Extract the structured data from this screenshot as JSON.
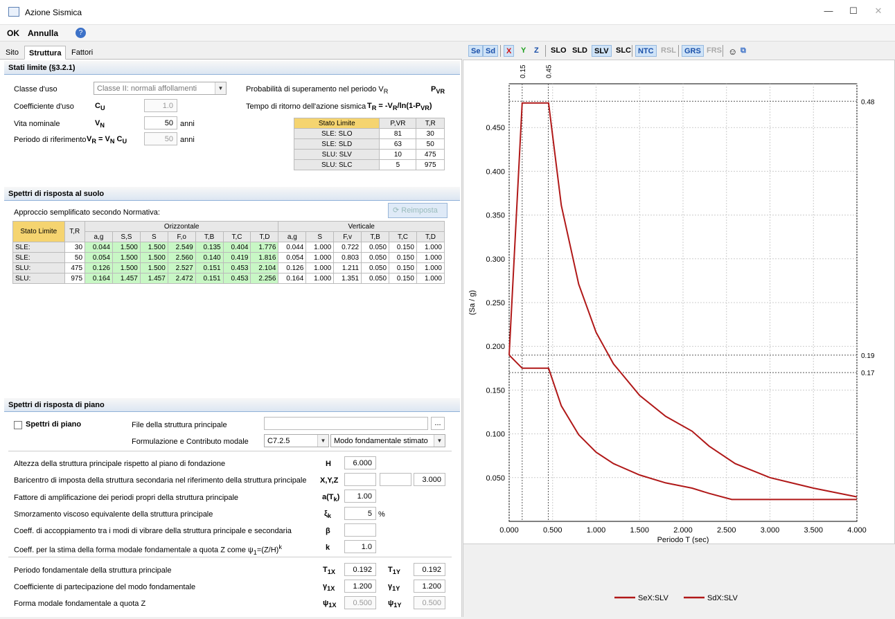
{
  "window": {
    "title": "Azione Sismica",
    "minimize": "—",
    "maximize": "☐",
    "close": "✕"
  },
  "menu": {
    "ok": "OK",
    "annulla": "Annulla",
    "help": "?"
  },
  "tabs": [
    "Sito",
    "Struttura",
    "Fattori"
  ],
  "stati": {
    "header": "Stati limite (§3.2.1)",
    "classe_label": "Classe d'uso",
    "classe_value": "Classe II: normali affollamenti",
    "coeff_label": "Coefficiente d'uso",
    "coeff_sym": "C",
    "coeff_sub": "U",
    "coeff_value": "1.0",
    "vita_label": "Vita nominale",
    "vita_sym": "V",
    "vita_sub": "N",
    "vita_value": "50",
    "vita_unit": "anni",
    "periodo_label": "Periodo di riferimento",
    "periodo_formula": "V",
    "periodo_value": "50",
    "periodo_unit": "anni",
    "prob_label": "Probabilità di superamento nel periodo V",
    "prob_sub": "R",
    "prob_sym": "P",
    "prob_sym_sub": "VR",
    "tempo_label": "Tempo di ritorno dell'azione sismica",
    "limit_table": {
      "headers": [
        "Stato Limite",
        "P,VR",
        "T,R"
      ],
      "rows": [
        [
          "SLE: SLO",
          "81",
          "30"
        ],
        [
          "SLE: SLD",
          "63",
          "50"
        ],
        [
          "SLU: SLV",
          "10",
          "475"
        ],
        [
          "SLU: SLC",
          "5",
          "975"
        ]
      ]
    }
  },
  "spettri": {
    "header": "Spettri di risposta al suolo",
    "approccio": "Approccio semplificato secondo Normativa:",
    "reimposta": "Reimposta",
    "stato": "Stato Limite",
    "tr": "T,R",
    "orizz": "Orizzontale",
    "vert": "Verticale",
    "cols_h": [
      "a,g",
      "S,S",
      "S",
      "F,o",
      "T,B",
      "T,C",
      "T,D"
    ],
    "cols_v": [
      "a,g",
      "S",
      "F,v",
      "T,B",
      "T,C",
      "T,D"
    ],
    "rows": [
      {
        "s": "SLE:",
        "tr": "30",
        "h": [
          "0.044",
          "1.500",
          "1.500",
          "2.549",
          "0.135",
          "0.404",
          "1.776"
        ],
        "v": [
          "0.044",
          "1.000",
          "0.722",
          "0.050",
          "0.150",
          "1.000"
        ]
      },
      {
        "s": "SLE:",
        "tr": "50",
        "h": [
          "0.054",
          "1.500",
          "1.500",
          "2.560",
          "0.140",
          "0.419",
          "1.816"
        ],
        "v": [
          "0.054",
          "1.000",
          "0.803",
          "0.050",
          "0.150",
          "1.000"
        ]
      },
      {
        "s": "SLU:",
        "tr": "475",
        "h": [
          "0.126",
          "1.500",
          "1.500",
          "2.527",
          "0.151",
          "0.453",
          "2.104"
        ],
        "v": [
          "0.126",
          "1.000",
          "1.211",
          "0.050",
          "0.150",
          "1.000"
        ]
      },
      {
        "s": "SLU:",
        "tr": "975",
        "h": [
          "0.164",
          "1.457",
          "1.457",
          "2.472",
          "0.151",
          "0.453",
          "2.256"
        ],
        "v": [
          "0.164",
          "1.000",
          "1.351",
          "0.050",
          "0.150",
          "1.000"
        ]
      }
    ]
  },
  "piano": {
    "header": "Spettri di risposta di piano",
    "chk_label": "Spettri di piano",
    "file_label": "File della struttura principale",
    "browse": "...",
    "form_label": "Formulazione e Contributo modale",
    "form_value": "C7.2.5",
    "modo_value": "Modo fondamentale stimato",
    "altezza_label": "Altezza della struttura principale rispetto al piano di fondazione",
    "altezza_sym": "H",
    "altezza_value": "6.000",
    "baric_label": "Baricentro di imposta della struttura secondaria nel riferimento della struttura principale",
    "baric_sym": "X,Y,Z",
    "baric_z": "3.000",
    "fatt_label": "Fattore di amplificazione dei periodi propri della struttura principale",
    "fatt_sym": "a(T",
    "fatt_value": "1.00",
    "smorz_label": "Smorzamento viscoso equivalente della struttura principale",
    "smorz_sym": "ξ",
    "smorz_value": "5",
    "smorz_unit": "%",
    "coeffacc_label": "Coeff. di accoppiamento tra i modi di vibrare della struttura principale e secondaria",
    "coeffacc_sym": "β",
    "coeffstima_label": "Coeff. per la stima della forma modale fondamentale a quota Z come ψ",
    "coeffstima_sym": "k",
    "coeffstima_value": "1.0",
    "per_label": "Periodo fondamentale della struttura principale",
    "per_x": "0.192",
    "per_y": "0.192",
    "part_label": "Coefficiente di partecipazione del modo fondamentale",
    "part_x": "1.200",
    "part_y": "1.200",
    "forma_label": "Forma modale fondamentale a quota Z",
    "forma_x": "0.500",
    "forma_y": "0.500"
  },
  "toolbar": [
    "Se",
    "Sd",
    "X",
    "Y",
    "Z",
    "SLO",
    "SLD",
    "SLV",
    "SLC",
    "NTC",
    "RSL",
    "GRS",
    "FRS"
  ],
  "chart_data": {
    "type": "line",
    "xlabel": "Periodo T (sec)",
    "ylabel": "(Sa / g)",
    "xlim": [
      0,
      4
    ],
    "ylim": [
      0,
      0.5
    ],
    "xticks": [
      "0.000",
      "0.500",
      "1.000",
      "1.500",
      "2.000",
      "2.500",
      "3.000",
      "3.500",
      "4.000"
    ],
    "yticks": [
      "0.050",
      "0.100",
      "0.150",
      "0.200",
      "0.250",
      "0.300",
      "0.350",
      "0.400",
      "0.450"
    ],
    "top_marks": [
      "0.15",
      "0.45"
    ],
    "right_marks": [
      "0.48",
      "0.19",
      "0.17"
    ],
    "series": [
      {
        "name": "SeX:SLV",
        "color": "#b01818",
        "points": [
          [
            0,
            0.19
          ],
          [
            0.15,
            0.478
          ],
          [
            0.453,
            0.478
          ],
          [
            0.6,
            0.361
          ],
          [
            0.8,
            0.271
          ],
          [
            1.0,
            0.216
          ],
          [
            1.2,
            0.18
          ],
          [
            1.5,
            0.144
          ],
          [
            1.8,
            0.12
          ],
          [
            2.104,
            0.103
          ],
          [
            2.3,
            0.086
          ],
          [
            2.6,
            0.066
          ],
          [
            3.0,
            0.05
          ],
          [
            3.5,
            0.038
          ],
          [
            4.0,
            0.028
          ]
        ]
      },
      {
        "name": "SdX:SLV",
        "color": "#b01818",
        "points": [
          [
            0,
            0.19
          ],
          [
            0.15,
            0.175
          ],
          [
            0.453,
            0.175
          ],
          [
            0.6,
            0.132
          ],
          [
            0.8,
            0.099
          ],
          [
            1.0,
            0.079
          ],
          [
            1.2,
            0.066
          ],
          [
            1.5,
            0.053
          ],
          [
            1.8,
            0.044
          ],
          [
            2.104,
            0.038
          ],
          [
            2.3,
            0.032
          ],
          [
            2.56,
            0.025
          ],
          [
            4.0,
            0.025
          ]
        ]
      }
    ]
  }
}
